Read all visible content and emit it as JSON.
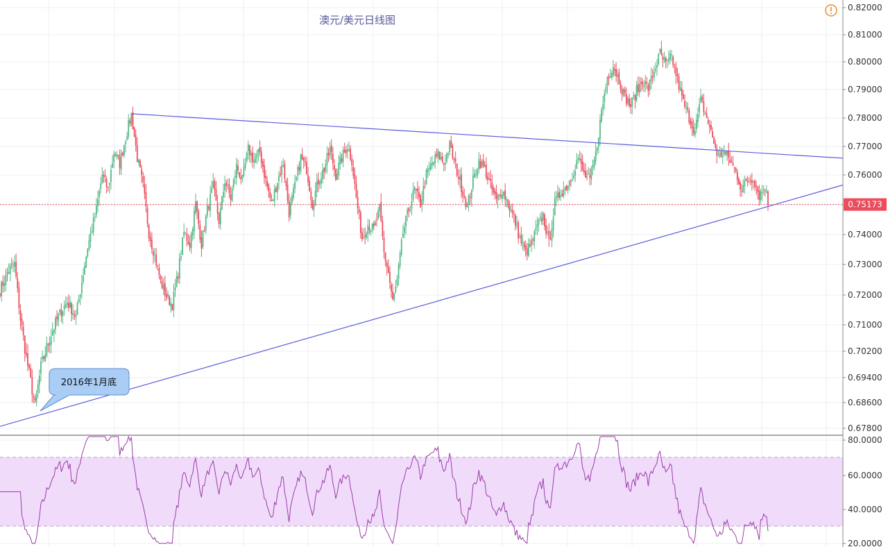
{
  "chart_data": {
    "type": "candlestick",
    "title": "澳元/美元日线图",
    "price_panel": {
      "y_ticks": [
        "0.82000",
        "0.81000",
        "0.80000",
        "0.79000",
        "0.78000",
        "0.77000",
        "0.76000",
        "0.75000",
        "0.74000",
        "0.73000",
        "0.72000",
        "0.71000",
        "0.70200",
        "0.69400",
        "0.68600",
        "0.67800"
      ],
      "current_price": "0.75173",
      "up_color": "#53b987",
      "down_color": "#eb4d5c",
      "waypoints": [
        [
          0,
          0.722
        ],
        [
          6,
          0.729
        ],
        [
          10,
          0.731
        ],
        [
          14,
          0.712
        ],
        [
          18,
          0.7
        ],
        [
          22,
          0.69
        ],
        [
          24,
          0.685
        ],
        [
          28,
          0.697
        ],
        [
          34,
          0.706
        ],
        [
          40,
          0.713
        ],
        [
          46,
          0.718
        ],
        [
          52,
          0.713
        ],
        [
          56,
          0.725
        ],
        [
          60,
          0.737
        ],
        [
          66,
          0.75
        ],
        [
          70,
          0.762
        ],
        [
          74,
          0.757
        ],
        [
          78,
          0.77
        ],
        [
          82,
          0.766
        ],
        [
          86,
          0.775
        ],
        [
          90,
          0.783
        ],
        [
          94,
          0.768
        ],
        [
          98,
          0.758
        ],
        [
          102,
          0.742
        ],
        [
          106,
          0.734
        ],
        [
          110,
          0.725
        ],
        [
          114,
          0.72
        ],
        [
          118,
          0.717
        ],
        [
          122,
          0.728
        ],
        [
          126,
          0.742
        ],
        [
          130,
          0.738
        ],
        [
          134,
          0.752
        ],
        [
          138,
          0.738
        ],
        [
          142,
          0.75
        ],
        [
          146,
          0.758
        ],
        [
          150,
          0.746
        ],
        [
          154,
          0.76
        ],
        [
          158,
          0.754
        ],
        [
          162,
          0.765
        ],
        [
          166,
          0.76
        ],
        [
          170,
          0.771
        ],
        [
          174,
          0.767
        ],
        [
          178,
          0.77
        ],
        [
          182,
          0.76
        ],
        [
          186,
          0.752
        ],
        [
          190,
          0.76
        ],
        [
          194,
          0.766
        ],
        [
          198,
          0.749
        ],
        [
          202,
          0.758
        ],
        [
          206,
          0.768
        ],
        [
          210,
          0.764
        ],
        [
          214,
          0.752
        ],
        [
          218,
          0.76
        ],
        [
          222,
          0.764
        ],
        [
          226,
          0.771
        ],
        [
          230,
          0.762
        ],
        [
          234,
          0.768
        ],
        [
          238,
          0.772
        ],
        [
          241,
          0.767
        ],
        [
          244,
          0.754
        ],
        [
          248,
          0.74
        ],
        [
          252,
          0.745
        ],
        [
          256,
          0.743
        ],
        [
          260,
          0.75
        ],
        [
          263,
          0.735
        ],
        [
          266,
          0.728
        ],
        [
          269,
          0.718
        ],
        [
          272,
          0.725
        ],
        [
          276,
          0.742
        ],
        [
          280,
          0.75
        ],
        [
          284,
          0.757
        ],
        [
          288,
          0.752
        ],
        [
          292,
          0.762
        ],
        [
          296,
          0.766
        ],
        [
          300,
          0.769
        ],
        [
          304,
          0.766
        ],
        [
          308,
          0.772
        ],
        [
          312,
          0.765
        ],
        [
          316,
          0.758
        ],
        [
          320,
          0.751
        ],
        [
          324,
          0.76
        ],
        [
          328,
          0.767
        ],
        [
          332,
          0.764
        ],
        [
          336,
          0.758
        ],
        [
          340,
          0.753
        ],
        [
          344,
          0.757
        ],
        [
          348,
          0.752
        ],
        [
          352,
          0.747
        ],
        [
          356,
          0.74
        ],
        [
          360,
          0.735
        ],
        [
          364,
          0.738
        ],
        [
          368,
          0.744
        ],
        [
          372,
          0.748
        ],
        [
          376,
          0.738
        ],
        [
          380,
          0.752
        ],
        [
          384,
          0.756
        ],
        [
          388,
          0.758
        ],
        [
          392,
          0.762
        ],
        [
          396,
          0.768
        ],
        [
          400,
          0.762
        ],
        [
          404,
          0.76
        ],
        [
          408,
          0.769
        ],
        [
          412,
          0.784
        ],
        [
          416,
          0.796
        ],
        [
          420,
          0.8
        ],
        [
          424,
          0.795
        ],
        [
          428,
          0.789
        ],
        [
          432,
          0.786
        ],
        [
          436,
          0.791
        ],
        [
          440,
          0.795
        ],
        [
          444,
          0.792
        ],
        [
          448,
          0.798
        ],
        [
          452,
          0.804
        ],
        [
          456,
          0.8
        ],
        [
          460,
          0.803
        ],
        [
          464,
          0.795
        ],
        [
          468,
          0.787
        ],
        [
          472,
          0.782
        ],
        [
          476,
          0.777
        ],
        [
          480,
          0.788
        ],
        [
          484,
          0.782
        ],
        [
          488,
          0.775
        ],
        [
          492,
          0.768
        ],
        [
          496,
          0.77
        ],
        [
          500,
          0.767
        ],
        [
          504,
          0.763
        ],
        [
          508,
          0.757
        ],
        [
          512,
          0.76
        ],
        [
          516,
          0.761
        ],
        [
          520,
          0.755
        ],
        [
          524,
          0.758
        ],
        [
          526,
          0.752
        ]
      ]
    },
    "rsi_panel": {
      "y_ticks": [
        "80.0000",
        "60.0000",
        "40.0000",
        "20.0000"
      ],
      "upper_band": 70,
      "lower_band": 30,
      "line_color": "#9c3aa8",
      "band_color": "#f0dcfa"
    },
    "annotations": {
      "callout_text": "2016年1月底"
    }
  }
}
